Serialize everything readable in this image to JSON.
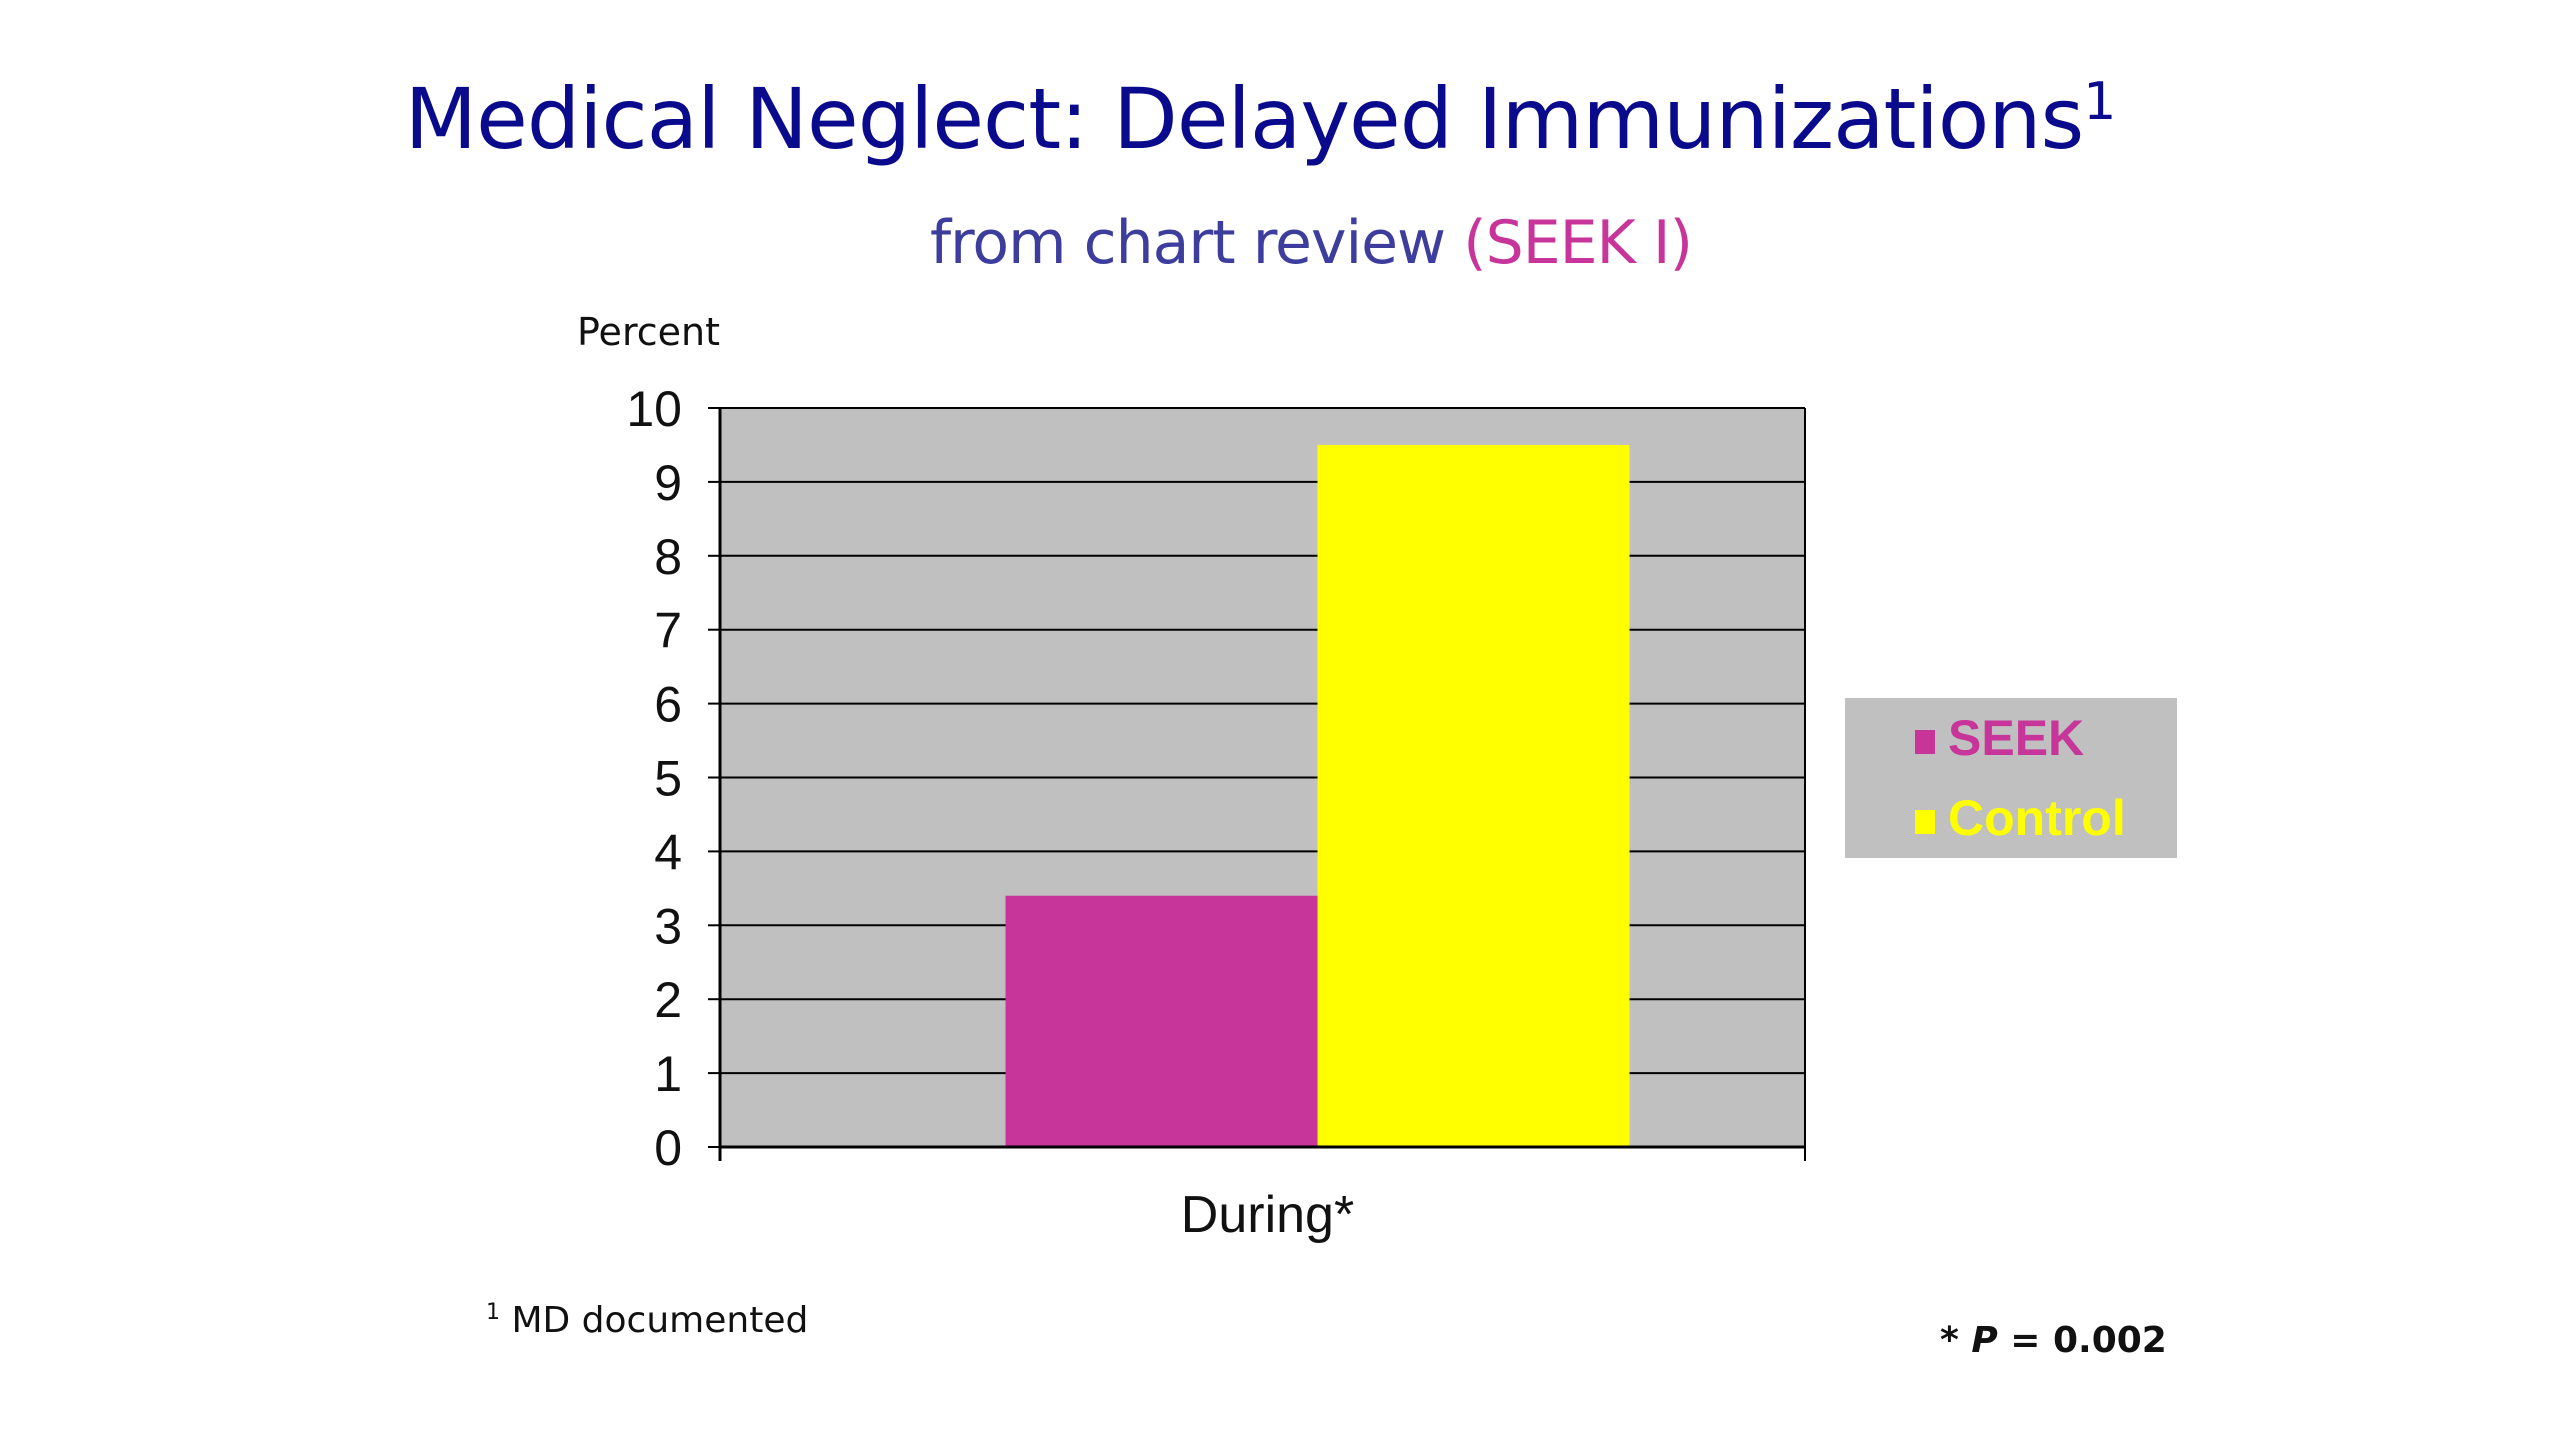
{
  "slide": {
    "title": "Medical Neglect: Delayed Immunizations",
    "title_sup": "1",
    "subtitle_main": "from chart review",
    "subtitle_accent": "(SEEK I)",
    "footnote_sup": "1",
    "footnote_text": "MD documented",
    "pvalue_prefix": "* ",
    "pvalue_p": "P",
    "pvalue_rest": " = 0.002",
    "colors": {
      "title": "#0a0a8c",
      "subtitle": "#3d3d9e",
      "accent": "#c8359a"
    }
  },
  "chart_data": {
    "type": "bar",
    "categories": [
      "During*"
    ],
    "series": [
      {
        "name": "SEEK",
        "values": [
          3.4
        ],
        "color": "#c8359a"
      },
      {
        "name": "Control",
        "values": [
          9.5
        ],
        "color": "#ffff00"
      }
    ],
    "ylabel": "Percent",
    "xlabel": "",
    "ylim": [
      0,
      10
    ],
    "yticks": [
      "0",
      "1",
      "2",
      "3",
      "4",
      "5",
      "6",
      "7",
      "8",
      "9",
      "10"
    ],
    "grid": true,
    "plot_background": "#c0c0c0",
    "legend": "right"
  }
}
